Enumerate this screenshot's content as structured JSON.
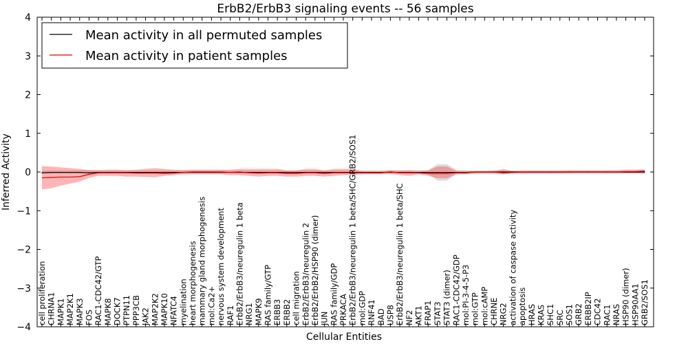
{
  "chart_data": {
    "type": "line",
    "title": "ErbB2/ErbB3 signaling events -- 56 samples",
    "xlabel": "Cellular Entities",
    "ylabel": "Inferred Activity",
    "ylim": [
      -4,
      4
    ],
    "yticks": [
      -4,
      -3,
      -2,
      -1,
      0,
      1,
      2,
      3,
      4
    ],
    "ytick_labels": [
      "−4",
      "−3",
      "−2",
      "−1",
      "0",
      "1",
      "2",
      "3",
      "4"
    ],
    "legend_location": "upper-left",
    "categories": [
      "cell proliferation",
      "CHRNA1",
      "MAPK1",
      "MAP2K1",
      "MAPK3",
      "FOS",
      "RAC1-CDC42/GTP",
      "MAPK8",
      "DOCK7",
      "PTPN11",
      "PPP3CB",
      "JAK2",
      "MAP2K2",
      "MAPK10",
      "NFATC4",
      "myelination",
      "heart morphogenesis",
      "mammary gland morphogenesis",
      "mol:Ca2+",
      "nervous system development",
      "RAF1",
      "ErbB2/ErbB3/neuregulin 1 beta",
      "NRG1",
      "MAPK9",
      "RAS family/GTP",
      "ERBB3",
      "ERBB2",
      "cell migration",
      "ErbB2/ErbB3/neuregulin 2",
      "ErbB2/ErbB2/HSP90 (dimer)",
      "JUN",
      "RAS family/GDP",
      "PRKACA",
      "ErbB2/ErbB3/neuregulin 1 beta/SHC/GRB2/SOS1",
      "mol:GDP",
      "RNF41",
      "BAD",
      "USP8",
      "ErbB2/ErbB3/neuregulin 1 beta/SHC",
      "NF2",
      "AKT1",
      "FRAP1",
      "STAT3",
      "STAT3 (dimer)",
      "RAC1-CDC42/GDP",
      "mol:PI-3-4-5-P3",
      "mol:GTP",
      "mol:cAMP",
      "CHRNE",
      "NRG2",
      "activation of caspase activity",
      "apoptosis",
      "HRAS",
      "KRAS",
      "SHC1",
      "SRC",
      "SOS1",
      "GRB2",
      "ERBB2IP",
      "CDC42",
      "RAC1",
      "NRAS",
      "HSP90 (dimer)",
      "HSP90AA1",
      "GRB2/SOS1"
    ],
    "series": [
      {
        "name": "Mean activity in all permuted samples",
        "color": "#000000",
        "values": [
          -0.02,
          -0.01,
          -0.01,
          -0.01,
          -0.01,
          -0.02,
          -0.01,
          -0.01,
          -0.01,
          -0.01,
          -0.01,
          -0.01,
          -0.01,
          -0.01,
          -0.01,
          -0.01,
          -0.01,
          -0.01,
          -0.01,
          -0.01,
          -0.01,
          -0.01,
          -0.01,
          -0.01,
          -0.01,
          -0.01,
          -0.01,
          -0.01,
          -0.01,
          -0.01,
          -0.01,
          -0.01,
          -0.01,
          -0.01,
          -0.01,
          -0.01,
          -0.01,
          -0.01,
          -0.01,
          -0.01,
          -0.01,
          -0.01,
          -0.01,
          -0.01,
          -0.01,
          -0.01,
          0.0,
          0.0,
          0.0,
          0.0,
          0.0,
          0.0,
          0.0,
          0.0,
          0.0,
          0.0,
          0.0,
          0.0,
          0.0,
          0.0,
          0.0,
          0.0,
          0.0,
          0.0,
          0.0
        ],
        "band_low": [
          -0.05,
          -0.05,
          -0.05,
          -0.05,
          -0.05,
          -0.06,
          -0.04,
          -0.04,
          -0.04,
          -0.04,
          -0.04,
          -0.04,
          -0.04,
          -0.04,
          -0.04,
          -0.04,
          -0.04,
          -0.04,
          -0.04,
          -0.04,
          -0.04,
          -0.04,
          -0.04,
          -0.04,
          -0.04,
          -0.04,
          -0.04,
          -0.04,
          -0.04,
          -0.04,
          -0.04,
          -0.04,
          -0.04,
          -0.04,
          -0.04,
          -0.04,
          -0.04,
          -0.04,
          -0.04,
          -0.05,
          -0.05,
          -0.05,
          -0.22,
          -0.22,
          -0.05,
          -0.05,
          -0.04,
          -0.04,
          -0.04,
          -0.04,
          -0.04,
          -0.04,
          -0.04,
          -0.04,
          -0.04,
          -0.04,
          -0.04,
          -0.04,
          -0.04,
          -0.04,
          -0.04,
          -0.04,
          -0.04,
          -0.04,
          -0.05
        ],
        "band_high": [
          0.04,
          0.04,
          0.04,
          0.04,
          0.04,
          0.05,
          0.04,
          0.04,
          0.04,
          0.04,
          0.04,
          0.04,
          0.04,
          0.04,
          0.04,
          0.04,
          0.04,
          0.04,
          0.04,
          0.04,
          0.04,
          0.04,
          0.04,
          0.04,
          0.04,
          0.04,
          0.04,
          0.04,
          0.04,
          0.04,
          0.04,
          0.04,
          0.04,
          0.04,
          0.04,
          0.04,
          0.04,
          0.04,
          0.04,
          0.05,
          0.05,
          0.05,
          0.2,
          0.2,
          0.05,
          0.05,
          0.04,
          0.04,
          0.04,
          0.04,
          0.04,
          0.04,
          0.04,
          0.04,
          0.04,
          0.04,
          0.04,
          0.04,
          0.04,
          0.04,
          0.04,
          0.04,
          0.04,
          0.04,
          0.05
        ]
      },
      {
        "name": "Mean activity in patient samples",
        "color": "#dd0000",
        "values": [
          -0.15,
          -0.14,
          -0.13,
          -0.13,
          -0.12,
          -0.06,
          -0.02,
          -0.02,
          -0.02,
          -0.02,
          -0.03,
          -0.03,
          -0.03,
          -0.04,
          -0.03,
          -0.01,
          0.0,
          0.0,
          0.0,
          0.0,
          -0.01,
          0.0,
          -0.02,
          -0.03,
          -0.02,
          -0.02,
          -0.04,
          -0.04,
          -0.02,
          -0.02,
          -0.04,
          -0.02,
          -0.02,
          -0.02,
          -0.02,
          -0.02,
          -0.02,
          0.0,
          -0.02,
          -0.02,
          -0.02,
          -0.04,
          -0.04,
          -0.04,
          -0.02,
          -0.02,
          0.0,
          0.0,
          0.0,
          -0.02,
          -0.01,
          0.0,
          0.0,
          0.0,
          0.0,
          0.0,
          0.0,
          0.0,
          0.0,
          0.0,
          0.0,
          0.0,
          0.01,
          0.01,
          0.02
        ],
        "band_low": [
          -0.45,
          -0.42,
          -0.35,
          -0.3,
          -0.25,
          -0.15,
          -0.1,
          -0.1,
          -0.1,
          -0.12,
          -0.12,
          -0.13,
          -0.14,
          -0.1,
          -0.08,
          -0.06,
          -0.06,
          -0.06,
          -0.06,
          -0.06,
          -0.08,
          -0.08,
          -0.1,
          -0.12,
          -0.1,
          -0.1,
          -0.12,
          -0.12,
          -0.1,
          -0.1,
          -0.12,
          -0.1,
          -0.08,
          -0.08,
          -0.06,
          -0.06,
          -0.06,
          -0.05,
          -0.08,
          -0.1,
          -0.06,
          -0.1,
          -0.16,
          -0.16,
          -0.06,
          -0.06,
          -0.04,
          -0.04,
          -0.04,
          -0.06,
          -0.04,
          -0.04,
          -0.04,
          -0.04,
          -0.04,
          -0.04,
          -0.03,
          -0.03,
          -0.03,
          -0.03,
          -0.03,
          -0.03,
          -0.03,
          -0.03,
          -0.03
        ],
        "band_high": [
          0.15,
          0.14,
          0.12,
          0.1,
          0.08,
          0.05,
          0.05,
          0.06,
          0.06,
          0.05,
          0.06,
          0.08,
          0.1,
          0.08,
          0.06,
          0.05,
          0.06,
          0.06,
          0.06,
          0.06,
          0.06,
          0.08,
          0.08,
          0.08,
          0.08,
          0.08,
          0.04,
          0.04,
          0.08,
          0.08,
          0.04,
          0.08,
          0.08,
          0.08,
          0.02,
          0.02,
          0.02,
          0.05,
          0.04,
          0.04,
          0.02,
          0.04,
          0.14,
          0.14,
          0.03,
          0.02,
          0.02,
          0.02,
          0.03,
          0.08,
          0.02,
          0.03,
          0.03,
          0.03,
          0.03,
          0.03,
          0.04,
          0.04,
          0.04,
          0.04,
          0.04,
          0.04,
          0.06,
          0.06,
          0.07
        ]
      }
    ]
  }
}
